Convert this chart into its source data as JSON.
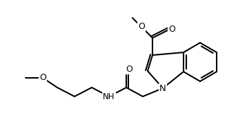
{
  "bg": "#ffffff",
  "lc": "#000000",
  "lw": 1.5,
  "fs": 8.5,
  "nodes": {
    "comment": "All atom positions in matplotlib coords (y-up, origin bottom-left), image 358x193"
  }
}
